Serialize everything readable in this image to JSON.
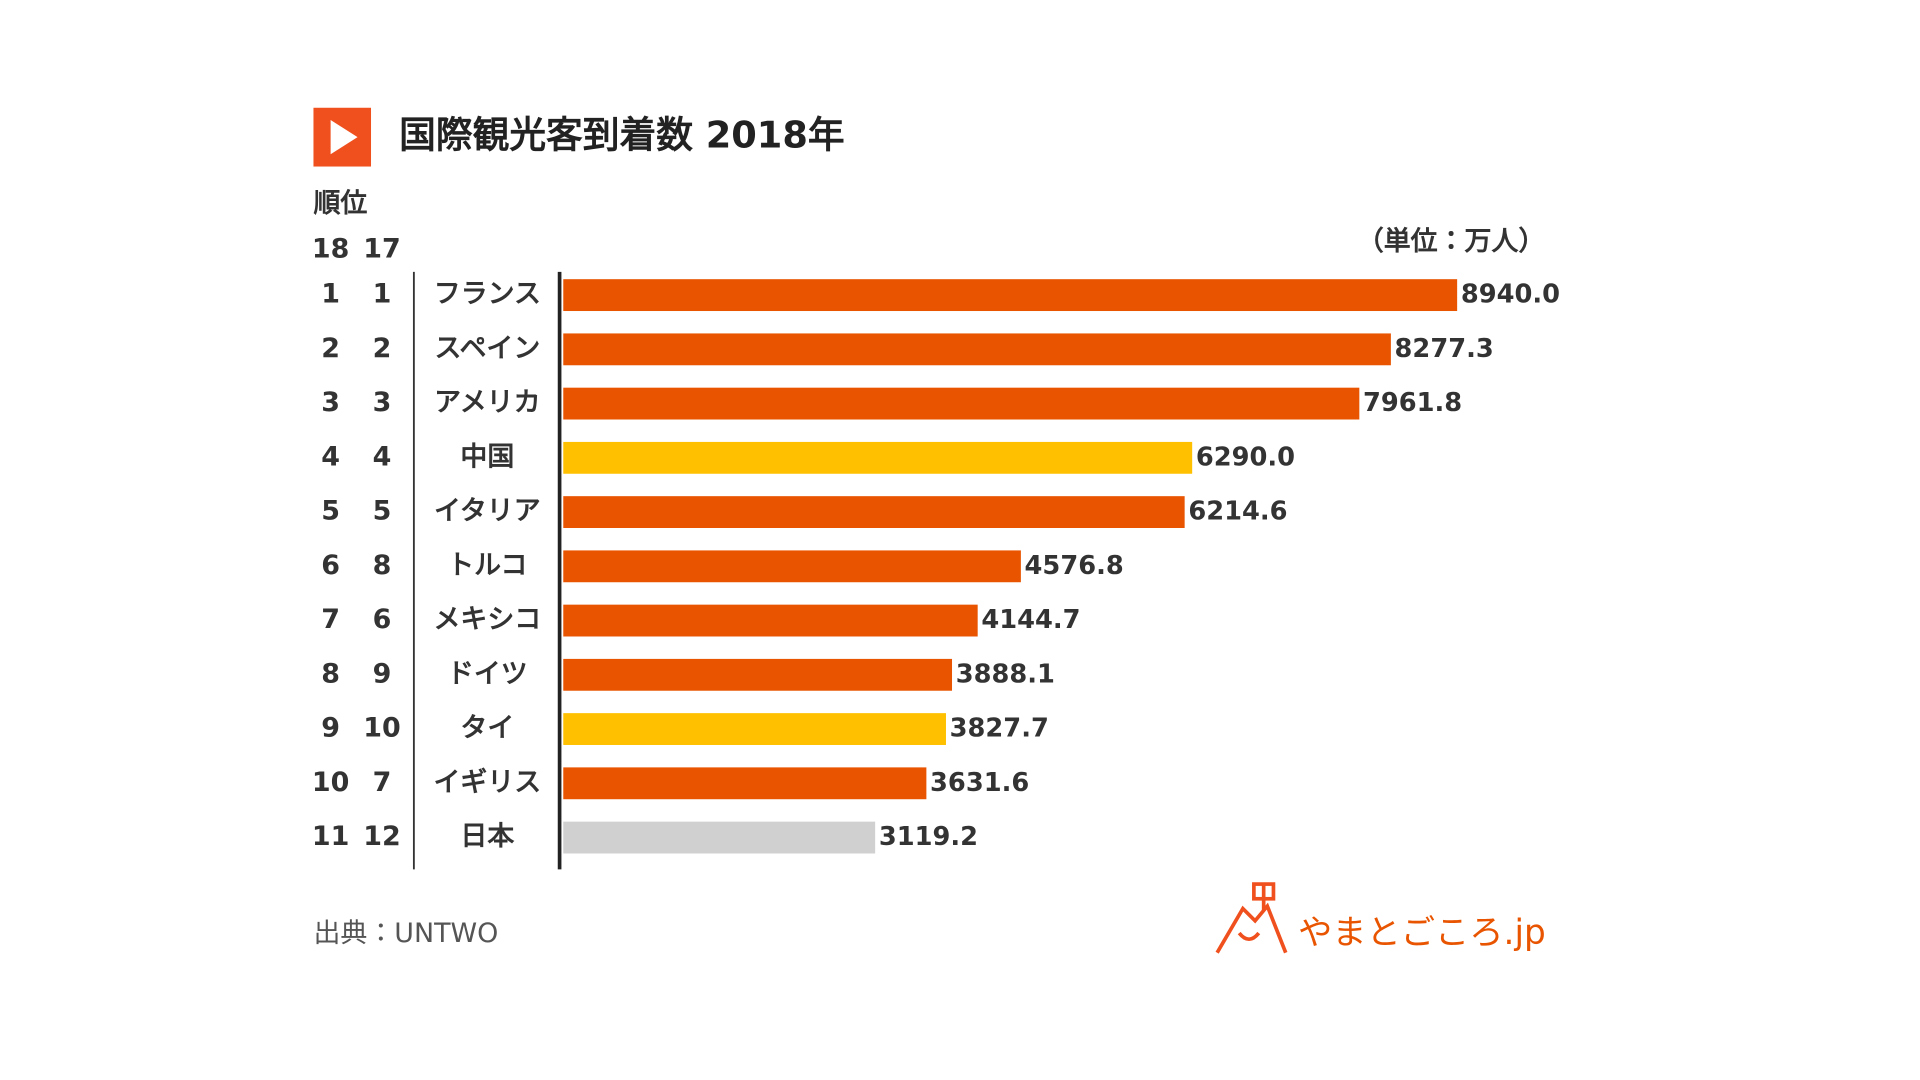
{
  "chart_data": {
    "type": "bar",
    "orientation": "horizontal",
    "title": "国際観光客到着数 2018年",
    "rank_header": "順位",
    "rank_columns": [
      "18",
      "17"
    ],
    "unit": "（単位：万人）",
    "source": "出典：UNTWO",
    "logo": "やまとごころ.jp",
    "categories": [
      "フランス",
      "スペイン",
      "アメリカ",
      "中国",
      "イタリア",
      "トルコ",
      "メキシコ",
      "ドイツ",
      "タイ",
      "イギリス",
      "日本"
    ],
    "rank_2018": [
      "1",
      "2",
      "3",
      "4",
      "5",
      "6",
      "7",
      "8",
      "9",
      "10",
      "11"
    ],
    "rank_2017": [
      "1",
      "2",
      "3",
      "4",
      "5",
      "8",
      "6",
      "9",
      "10",
      "7",
      "12"
    ],
    "values": [
      8940,
      8277.3,
      7961.8,
      6290,
      6214.6,
      4576.8,
      4144.7,
      3888.1,
      3827.7,
      3631.6,
      3119.2
    ],
    "value_labels": [
      "8940.0",
      "8277.3",
      "7961.8",
      "6290.0",
      "6214.6",
      "4576.8",
      "4144.7",
      "3888.1",
      "3827.7",
      "3631.6",
      "3119.2"
    ],
    "colors": [
      "#e85400",
      "#e85400",
      "#e85400",
      "#ffc000",
      "#e85400",
      "#e85400",
      "#e85400",
      "#e85400",
      "#ffc000",
      "#e85400",
      "#d0d0d0"
    ]
  }
}
